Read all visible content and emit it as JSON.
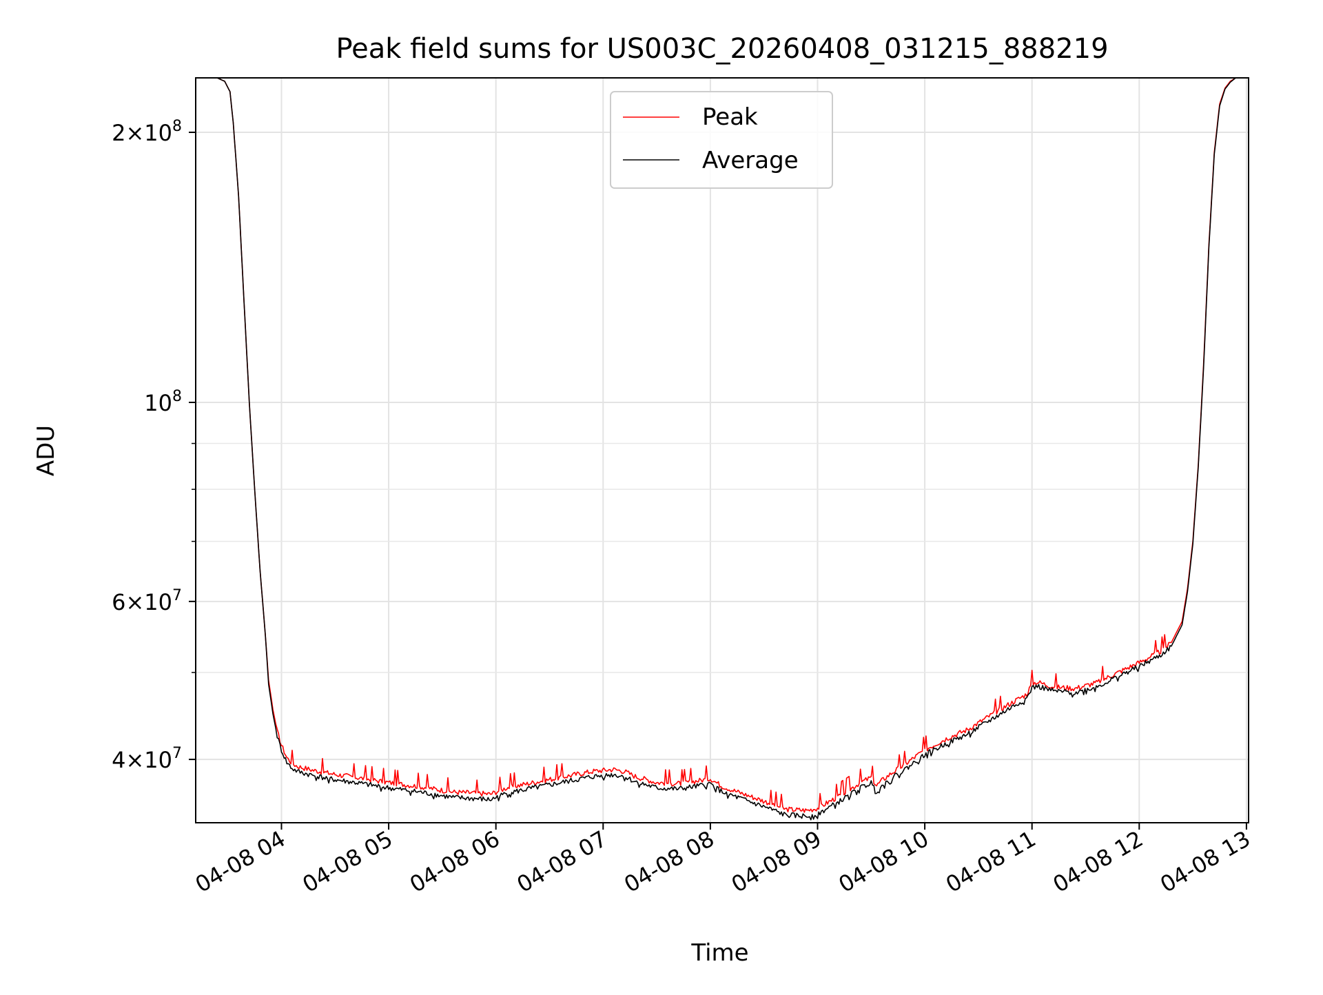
{
  "chart_data": {
    "type": "line",
    "title": "Peak field sums for US003C_20260408_031215_888219",
    "xlabel": "Time",
    "ylabel": "ADU",
    "x_unit": "hours since 04-08 00:00",
    "xlim": [
      3.2,
      13.02
    ],
    "ylim": [
      34000000,
      230000000
    ],
    "yscale": "log",
    "grid": true,
    "legend_position": "upper center",
    "x_ticks": [
      {
        "value": 4,
        "label": "04-08 04"
      },
      {
        "value": 5,
        "label": "04-08 05"
      },
      {
        "value": 6,
        "label": "04-08 06"
      },
      {
        "value": 7,
        "label": "04-08 07"
      },
      {
        "value": 8,
        "label": "04-08 08"
      },
      {
        "value": 9,
        "label": "04-08 09"
      },
      {
        "value": 10,
        "label": "04-08 10"
      },
      {
        "value": 11,
        "label": "04-08 11"
      },
      {
        "value": 12,
        "label": "04-08 12"
      },
      {
        "value": 13,
        "label": "04-08 13"
      }
    ],
    "y_major_ticks": [
      {
        "value": 40000000,
        "mantissa": "4",
        "exponent": "7"
      },
      {
        "value": 60000000,
        "mantissa": "6",
        "exponent": "7"
      },
      {
        "value": 100000000,
        "mantissa": "",
        "exponent": "8"
      },
      {
        "value": 200000000,
        "mantissa": "2",
        "exponent": "8"
      }
    ],
    "y_minor_ticks": [
      50000000,
      70000000,
      80000000,
      90000000
    ],
    "series": [
      {
        "name": "Peak",
        "color": "#ff0000",
        "x": [
          3.2,
          3.4,
          3.47,
          3.52,
          3.55,
          3.6,
          3.65,
          3.7,
          3.75,
          3.8,
          3.85,
          3.88,
          3.92,
          3.96,
          4.0,
          4.05,
          4.1,
          4.15,
          4.3,
          4.5,
          4.7,
          5.0,
          5.3,
          5.6,
          5.8,
          5.95,
          6.1,
          6.4,
          6.7,
          6.9,
          7.1,
          7.2,
          7.3,
          7.5,
          7.7,
          7.9,
          8.0,
          8.1,
          8.2,
          8.4,
          8.6,
          8.7,
          8.9,
          9.0,
          9.2,
          9.4,
          9.5,
          9.55,
          9.6,
          9.7,
          9.8,
          10.0,
          10.2,
          10.4,
          10.6,
          10.8,
          10.95,
          11.0,
          11.05,
          11.1,
          11.2,
          11.4,
          11.6,
          11.8,
          12.0,
          12.2,
          12.3,
          12.4,
          12.45,
          12.5,
          12.55,
          12.6,
          12.65,
          12.7,
          12.75,
          12.8,
          12.85,
          12.9,
          12.95,
          13.02
        ],
        "y": [
          230000000,
          230000000,
          228000000,
          222000000,
          205000000,
          170000000,
          130000000,
          100000000,
          80000000,
          65000000,
          55000000,
          49000000,
          45500000,
          43000000,
          41500000,
          40200000,
          39600000,
          39300000,
          38900000,
          38500000,
          38200000,
          37700000,
          37300000,
          36800000,
          36700000,
          36600000,
          37200000,
          37800000,
          38400000,
          38800000,
          39000000,
          38800000,
          38300000,
          37700000,
          37600000,
          37900000,
          38100000,
          37400000,
          37000000,
          36300000,
          35600000,
          35200000,
          35100000,
          35300000,
          36400000,
          37700000,
          38200000,
          37400000,
          37900000,
          38700000,
          39400000,
          41000000,
          42200000,
          43200000,
          44700000,
          46200000,
          47300000,
          48600000,
          48800000,
          48600000,
          48200000,
          48000000,
          48700000,
          50000000,
          51300000,
          52800000,
          54000000,
          57000000,
          62000000,
          70000000,
          85000000,
          110000000,
          150000000,
          190000000,
          215000000,
          224000000,
          228000000,
          230000000,
          230000000,
          230000000
        ]
      },
      {
        "name": "Average",
        "color": "#000000",
        "x": [
          3.2,
          3.4,
          3.47,
          3.52,
          3.55,
          3.6,
          3.65,
          3.7,
          3.75,
          3.8,
          3.85,
          3.88,
          3.92,
          3.96,
          4.0,
          4.05,
          4.1,
          4.15,
          4.3,
          4.5,
          4.7,
          5.0,
          5.3,
          5.6,
          5.8,
          5.95,
          6.1,
          6.4,
          6.7,
          6.9,
          7.1,
          7.2,
          7.3,
          7.5,
          7.7,
          7.9,
          8.0,
          8.1,
          8.2,
          8.4,
          8.6,
          8.7,
          8.9,
          9.0,
          9.2,
          9.4,
          9.5,
          9.55,
          9.6,
          9.7,
          9.8,
          10.0,
          10.2,
          10.4,
          10.6,
          10.8,
          10.95,
          11.0,
          11.05,
          11.1,
          11.2,
          11.4,
          11.6,
          11.8,
          12.0,
          12.2,
          12.3,
          12.4,
          12.45,
          12.5,
          12.55,
          12.6,
          12.65,
          12.7,
          12.75,
          12.8,
          12.85,
          12.9,
          12.95,
          13.02
        ],
        "y": [
          230000000,
          230000000,
          228000000,
          222000000,
          205000000,
          170000000,
          130000000,
          100000000,
          80000000,
          65000000,
          55000000,
          48500000,
          45000000,
          42500000,
          41000000,
          39700000,
          39100000,
          38800000,
          38400000,
          38000000,
          37700000,
          37200000,
          36800000,
          36300000,
          36200000,
          36100000,
          36700000,
          37300000,
          37900000,
          38300000,
          38500000,
          38300000,
          37800000,
          37200000,
          37100000,
          37400000,
          37600000,
          36900000,
          36500000,
          35800000,
          35100000,
          34700000,
          34600000,
          34800000,
          35900000,
          37200000,
          37700000,
          36900000,
          37400000,
          38200000,
          38900000,
          40500000,
          41700000,
          42700000,
          44200000,
          45700000,
          46800000,
          48100000,
          48300000,
          48100000,
          47700000,
          47500000,
          48200000,
          49500000,
          50800000,
          52300000,
          53500000,
          56500000,
          61500000,
          69500000,
          84500000,
          109000000,
          149000000,
          189000000,
          214000000,
          223500000,
          227500000,
          230000000,
          230000000,
          230000000
        ]
      }
    ]
  }
}
